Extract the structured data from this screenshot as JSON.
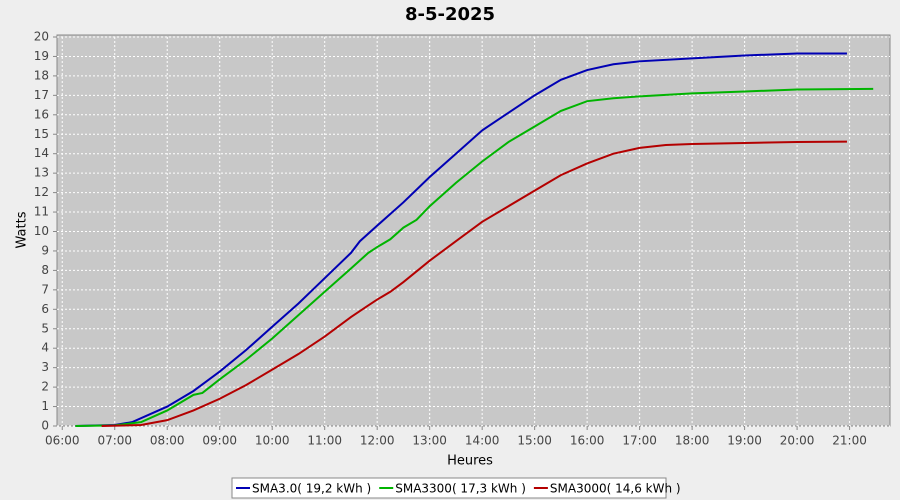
{
  "chart_data": {
    "type": "line",
    "title": "8-5-2025",
    "x_label": "Heures",
    "y_label": "Watts",
    "xlim": [
      5.9,
      21.77
    ],
    "ylim": [
      0,
      20
    ],
    "xticks": [
      {
        "value": 6,
        "label": "06:00"
      },
      {
        "value": 7,
        "label": "07:00"
      },
      {
        "value": 8,
        "label": "08:00"
      },
      {
        "value": 9,
        "label": "09:00"
      },
      {
        "value": 10,
        "label": "10:00"
      },
      {
        "value": 11,
        "label": "11:00"
      },
      {
        "value": 12,
        "label": "12:00"
      },
      {
        "value": 13,
        "label": "13:00"
      },
      {
        "value": 14,
        "label": "14:00"
      },
      {
        "value": 15,
        "label": "15:00"
      },
      {
        "value": 16,
        "label": "16:00"
      },
      {
        "value": 17,
        "label": "17:00"
      },
      {
        "value": 18,
        "label": "18:00"
      },
      {
        "value": 19,
        "label": "19:00"
      },
      {
        "value": 20,
        "label": "20:00"
      },
      {
        "value": 21,
        "label": "21:00"
      }
    ],
    "yticks": [
      0,
      1,
      2,
      3,
      4,
      5,
      6,
      7,
      8,
      9,
      10,
      11,
      12,
      13,
      14,
      15,
      16,
      17,
      18,
      19,
      20
    ],
    "grid": true,
    "legend": "bottom",
    "series": [
      {
        "name": "SMA3.0( 19,2 kWh )",
        "color": "#0000b4",
        "x": [
          6.25,
          7.0,
          7.33,
          8.0,
          8.5,
          9.0,
          9.5,
          10.0,
          10.5,
          11.0,
          11.5,
          11.67,
          12.0,
          12.5,
          13.0,
          13.5,
          14.0,
          14.5,
          15.0,
          15.5,
          16.0,
          16.5,
          17.0,
          18.0,
          19.0,
          20.0,
          20.95
        ],
        "values": [
          0,
          0.05,
          0.2,
          1.0,
          1.8,
          2.8,
          3.9,
          5.1,
          6.3,
          7.6,
          8.9,
          9.5,
          10.3,
          11.5,
          12.8,
          14.0,
          15.2,
          16.1,
          17.0,
          17.8,
          18.3,
          18.6,
          18.75,
          18.9,
          19.05,
          19.15,
          19.15
        ]
      },
      {
        "name": "SMA3300( 17,3 kWh )",
        "color": "#00b400",
        "x": [
          6.25,
          7.0,
          7.5,
          8.0,
          8.5,
          8.67,
          9.0,
          9.5,
          10.0,
          10.5,
          11.0,
          11.5,
          11.83,
          12.0,
          12.25,
          12.5,
          12.75,
          13.0,
          13.5,
          14.0,
          14.5,
          15.0,
          15.5,
          16.0,
          16.5,
          17.0,
          18.0,
          19.0,
          20.0,
          21.45
        ],
        "values": [
          0,
          0.03,
          0.2,
          0.8,
          1.6,
          1.7,
          2.4,
          3.4,
          4.5,
          5.7,
          6.9,
          8.1,
          8.9,
          9.2,
          9.6,
          10.2,
          10.6,
          11.3,
          12.5,
          13.6,
          14.6,
          15.4,
          16.2,
          16.7,
          16.85,
          16.95,
          17.1,
          17.2,
          17.3,
          17.33
        ]
      },
      {
        "name": "SMA3000( 14,6 kWh )",
        "color": "#b40000",
        "x": [
          6.75,
          7.5,
          8.0,
          8.5,
          9.0,
          9.5,
          10.0,
          10.5,
          11.0,
          11.5,
          11.83,
          12.0,
          12.25,
          12.5,
          13.0,
          13.5,
          14.0,
          14.5,
          15.0,
          15.5,
          16.0,
          16.5,
          17.0,
          17.5,
          18.0,
          19.0,
          20.0,
          20.95
        ],
        "values": [
          0,
          0.05,
          0.3,
          0.8,
          1.4,
          2.1,
          2.9,
          3.7,
          4.6,
          5.6,
          6.2,
          6.5,
          6.9,
          7.4,
          8.5,
          9.5,
          10.5,
          11.3,
          12.1,
          12.9,
          13.5,
          14.0,
          14.3,
          14.45,
          14.5,
          14.55,
          14.6,
          14.62
        ]
      }
    ]
  }
}
